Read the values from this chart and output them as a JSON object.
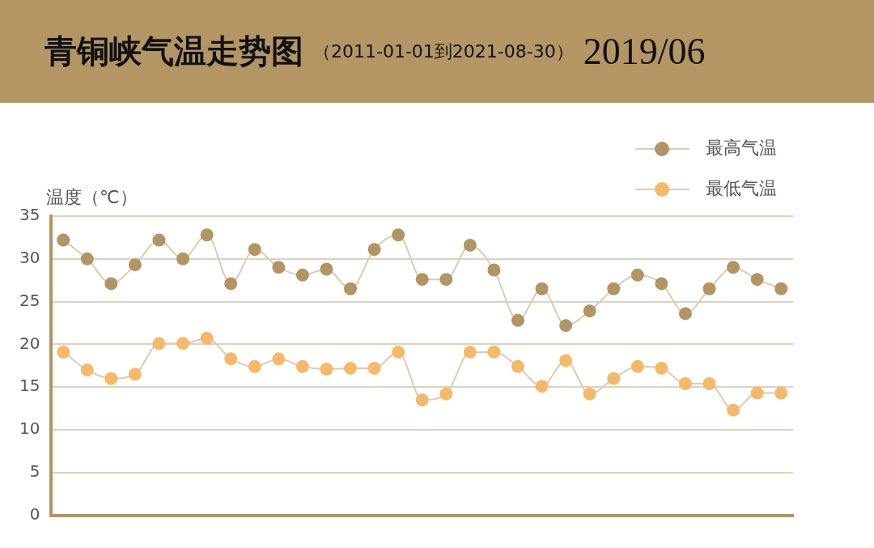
{
  "chart_data": {
    "type": "line",
    "title": "青铜峡气温走势图",
    "subtitle": "（2011-01-01到2021-08-30）",
    "annotations": [
      "2019/06"
    ],
    "ylabel": "温度（℃）",
    "categories": [
      null,
      null,
      null,
      null,
      null,
      null,
      null,
      null,
      null,
      null,
      null,
      null,
      null,
      null,
      null,
      null,
      null,
      null,
      null,
      null,
      null,
      null,
      null,
      null,
      null,
      null,
      null,
      null,
      null,
      null,
      null
    ],
    "series": [
      {
        "name": "最高气温",
        "color": "#b39462",
        "values": [
          32.2,
          30,
          27.1,
          29.3,
          32.2,
          30,
          32.8,
          27.1,
          31.1,
          29,
          28.1,
          28.8,
          26.5,
          31.1,
          32.8,
          27.6,
          27.6,
          31.6,
          28.7,
          22.8,
          26.5,
          22.2,
          23.9,
          26.5,
          28.1,
          27.1,
          23.6,
          26.5,
          29,
          27.6,
          26.5
        ]
      },
      {
        "name": "最低气温",
        "color": "#f5b969",
        "values": [
          19.1,
          17,
          16,
          16.5,
          20.1,
          20.1,
          20.7,
          18.3,
          17.4,
          18.3,
          17.4,
          17.1,
          17.2,
          17.2,
          19.1,
          13.5,
          14.2,
          19.1,
          19.1,
          17.4,
          15.1,
          18.1,
          14.2,
          16,
          17.4,
          17.2,
          15.4,
          15.4,
          12.3,
          14.3,
          14.3
        ]
      }
    ],
    "ylim": [
      0,
      35
    ],
    "yticks": [
      0,
      5,
      10,
      15,
      20,
      25,
      30,
      35
    ],
    "grid": "y",
    "legend": "top right",
    "marker": "circle",
    "line_style": "solid"
  }
}
